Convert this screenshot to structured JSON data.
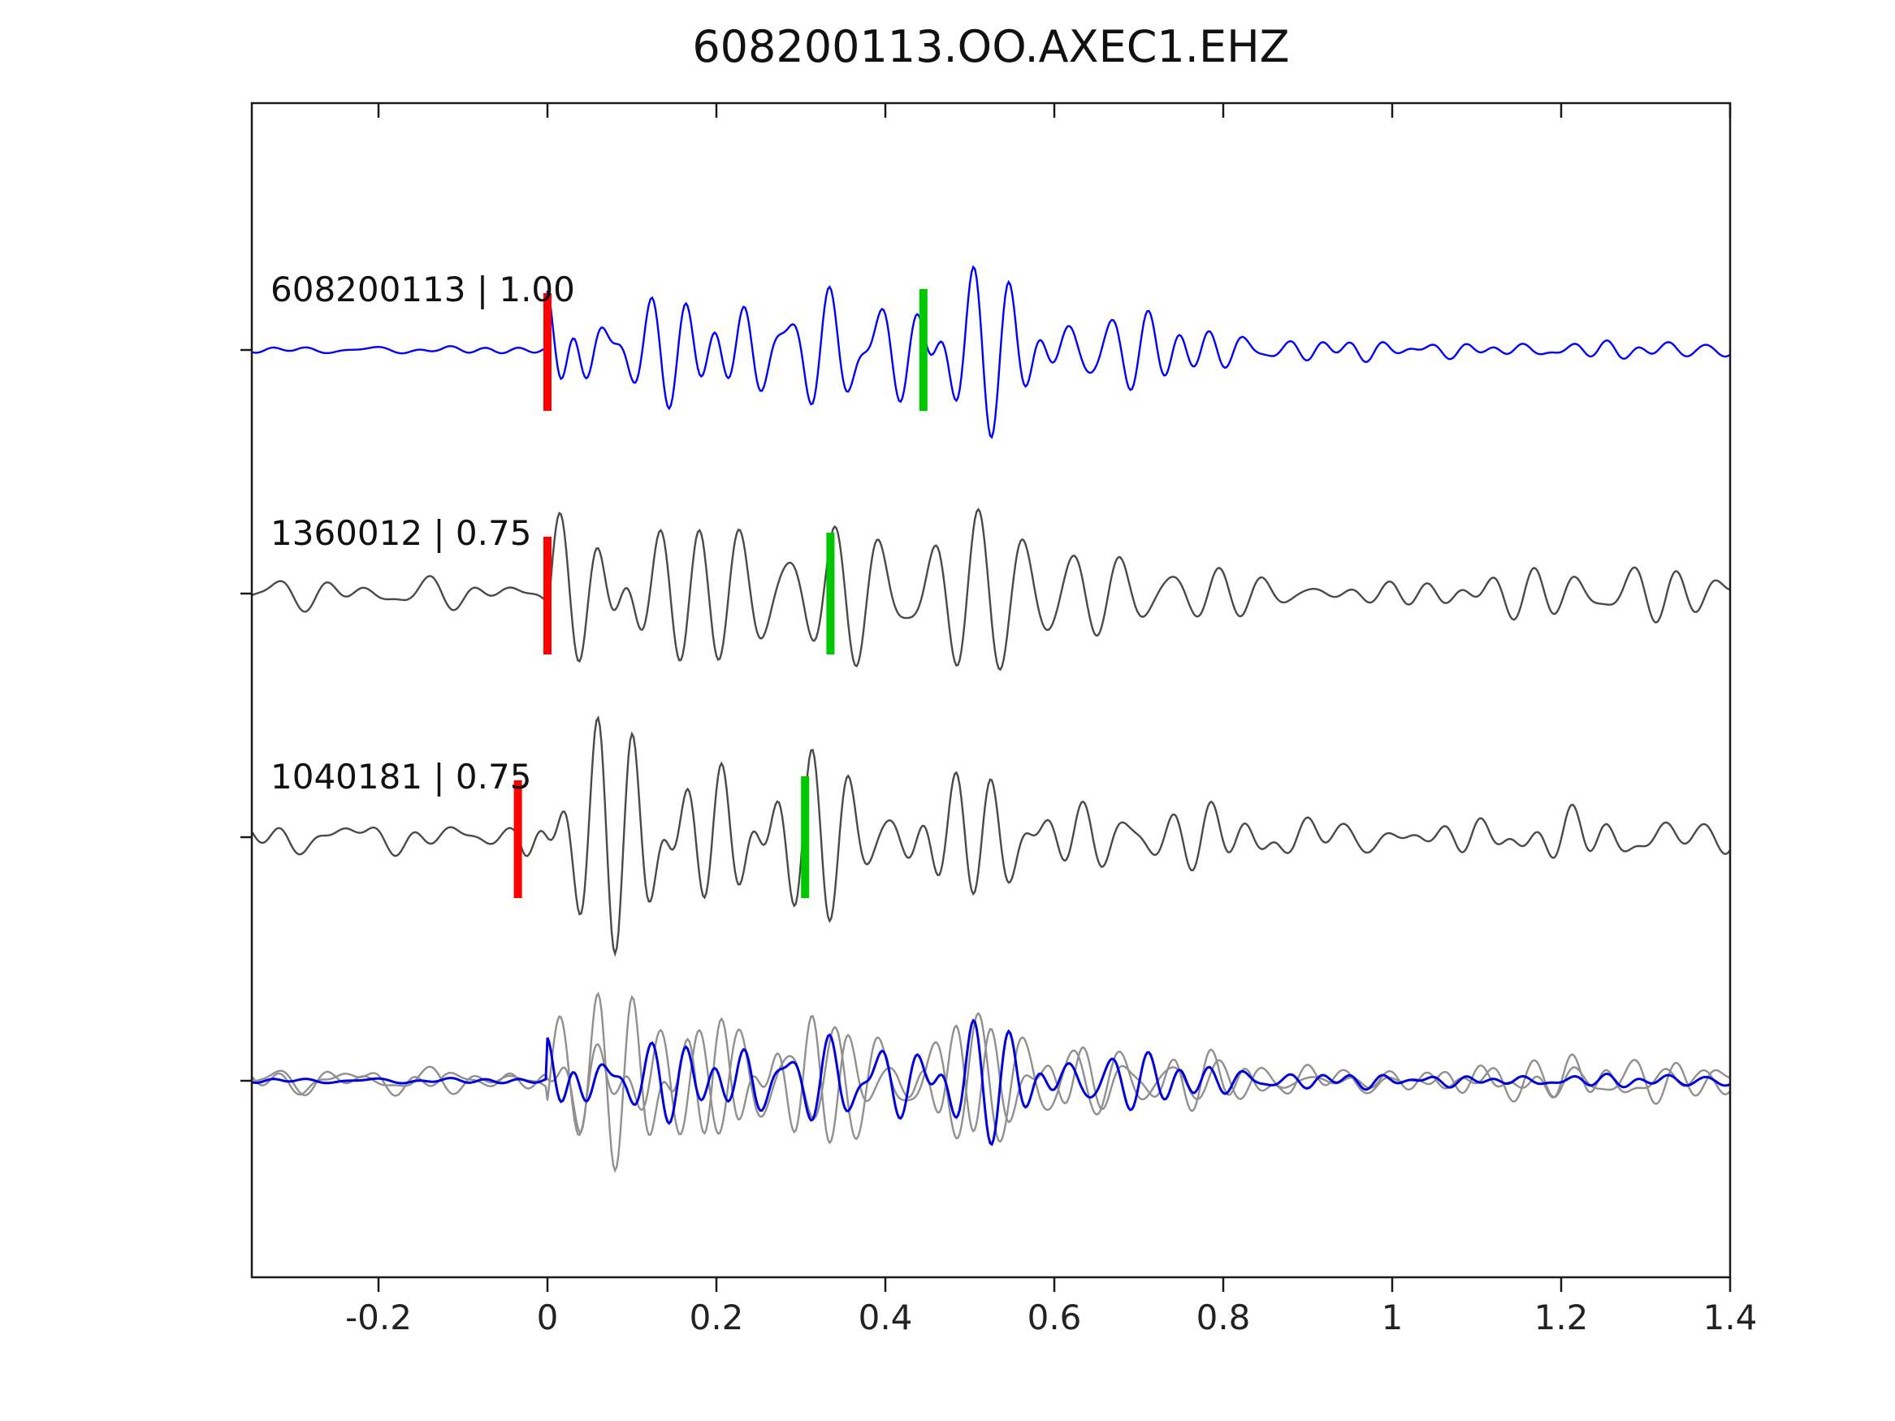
{
  "chart_data": {
    "type": "line",
    "title": "608200113.OO.AXEC1.EHZ",
    "xlabel": "",
    "ylabel": "",
    "xlim": [
      -0.35,
      1.4
    ],
    "xticks": [
      -0.2,
      0,
      0.2,
      0.4,
      0.6,
      0.8,
      1,
      1.2,
      1.4
    ],
    "xtick_labels": [
      "-0.2",
      "0",
      "0.2",
      "0.4",
      "0.6",
      "0.8",
      "1",
      "1.2",
      "1.4"
    ],
    "grid": false,
    "legend": "none",
    "colors": {
      "axis": "#1a1a1a",
      "pick_red": "#ff0000",
      "pick_green": "#00c800",
      "overlay_gray": "#909090",
      "overlay_blue": "#0000dd"
    },
    "traces": [
      {
        "label": "608200113 | 1.00",
        "event_id": "608200113",
        "correlation": "1.00",
        "color": "#0000ff",
        "pick_red": 0.0,
        "pick_green": 0.445,
        "synth": {
          "seed": 7,
          "onset": 0,
          "freq": 26,
          "n_osc": 6,
          "spike": 0.9,
          "spike_t": 0.03,
          "spike_w": 0.05,
          "main": 1.0,
          "peak_t": 0.42,
          "peak_w": 0.17,
          "coda": 0.25,
          "coda_decay": 1.2,
          "noise": 0.04
        }
      },
      {
        "label": "1360012 | 0.75",
        "event_id": "1360012",
        "correlation": "0.75",
        "color": "#4a4a4a",
        "pick_red": 0.0,
        "pick_green": 0.335,
        "synth": {
          "seed": 23,
          "onset": 0,
          "freq": 24,
          "n_osc": 6,
          "spike": 1.0,
          "spike_t": 0.04,
          "spike_w": 0.07,
          "main": 0.7,
          "peak_t": 0.3,
          "peak_w": 0.25,
          "coda": 0.38,
          "coda_decay": 2.2,
          "noise": 0.16
        }
      },
      {
        "label": "1040181 | 0.75",
        "event_id": "1040181",
        "correlation": "0.75",
        "color": "#4a4a4a",
        "pick_red": -0.035,
        "pick_green": 0.305,
        "synth": {
          "seed": 41,
          "onset": -0.035,
          "freq": 23,
          "n_osc": 6,
          "spike": 0.85,
          "spike_t": 0.09,
          "spike_w": 0.1,
          "main": 1.0,
          "peak_t": 0.45,
          "peak_w": 0.15,
          "coda": 0.3,
          "coda_decay": 1.6,
          "noise": 0.17
        }
      },
      {
        "label": "",
        "overlay": true,
        "description": "stack row: gray aligned detections overlaid with blue template"
      }
    ]
  }
}
